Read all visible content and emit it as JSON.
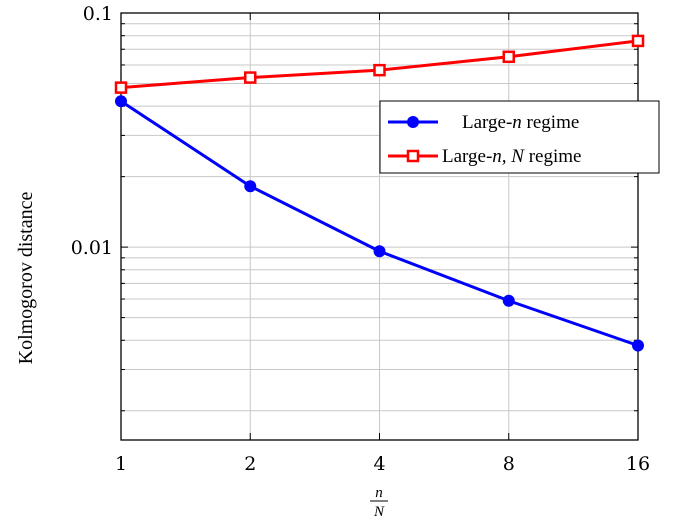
{
  "chart_data": {
    "type": "line",
    "x_scale": "log2",
    "y_scale": "log10",
    "x": [
      1,
      2,
      4,
      8,
      16
    ],
    "x_tick_labels": [
      "1",
      "2",
      "4",
      "8",
      "16"
    ],
    "y_tick_labels": [
      "0.01",
      "0.1"
    ],
    "y_tick_values": [
      0.01,
      0.1
    ],
    "xlim": [
      1,
      16
    ],
    "ylim": [
      0.0015,
      0.1
    ],
    "ylabel": "Kolmogorov distance",
    "xlabel_numerator": "n",
    "xlabel_denominator": "N",
    "grid": true,
    "legend_position": "upper-right",
    "series": [
      {
        "name_prefix": "Large-",
        "name_var": "n",
        "name_suffix": " regime",
        "color": "#0000ff",
        "marker": "circle",
        "values": [
          0.042,
          0.0182,
          0.0096,
          0.0059,
          0.0038
        ]
      },
      {
        "name_prefix": "Large-",
        "name_var": "n, N",
        "name_suffix": " regime",
        "color": "#ff0000",
        "marker": "square",
        "values": [
          0.048,
          0.053,
          0.057,
          0.065,
          0.076
        ]
      }
    ]
  }
}
